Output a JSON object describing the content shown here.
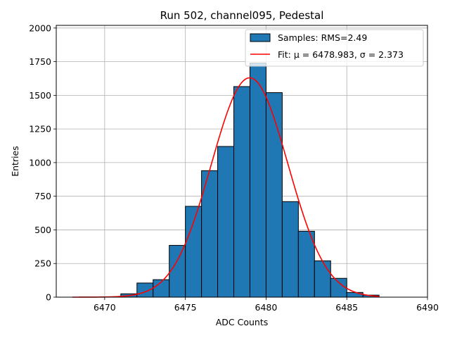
{
  "chart_data": {
    "type": "bar",
    "title": "Run 502, channel095, Pedestal",
    "xlabel": "ADC Counts",
    "ylabel": "Entries",
    "xlim": [
      6467,
      6490
    ],
    "ylim": [
      0,
      2020
    ],
    "x_ticks": [
      6470,
      6475,
      6480,
      6485,
      6490
    ],
    "y_ticks": [
      0,
      250,
      500,
      750,
      1000,
      1250,
      1500,
      1750,
      2000
    ],
    "grid": true,
    "legend_position": "top-right",
    "bin_width": 1,
    "bins": [
      {
        "x": 6471,
        "value": 25
      },
      {
        "x": 6472,
        "value": 105
      },
      {
        "x": 6473,
        "value": 130
      },
      {
        "x": 6474,
        "value": 385
      },
      {
        "x": 6475,
        "value": 675
      },
      {
        "x": 6476,
        "value": 940
      },
      {
        "x": 6477,
        "value": 1120
      },
      {
        "x": 6478,
        "value": 1565
      },
      {
        "x": 6479,
        "value": 1740
      },
      {
        "x": 6480,
        "value": 1520
      },
      {
        "x": 6481,
        "value": 710
      },
      {
        "x": 6482,
        "value": 490
      },
      {
        "x": 6483,
        "value": 270
      },
      {
        "x": 6484,
        "value": 140
      },
      {
        "x": 6485,
        "value": 35
      },
      {
        "x": 6486,
        "value": 15
      }
    ],
    "series": [
      {
        "name": "Samples: RMS=2.49",
        "kind": "histogram",
        "color": "#1f77b4",
        "edgecolor": "#000000"
      },
      {
        "name": "Fit: μ = 6478.983, σ = 2.373",
        "kind": "line",
        "color": "#ff0000",
        "mu": 6478.983,
        "sigma": 2.373,
        "amplitude": 1630,
        "x_range": [
          6468,
          6487
        ]
      }
    ]
  }
}
